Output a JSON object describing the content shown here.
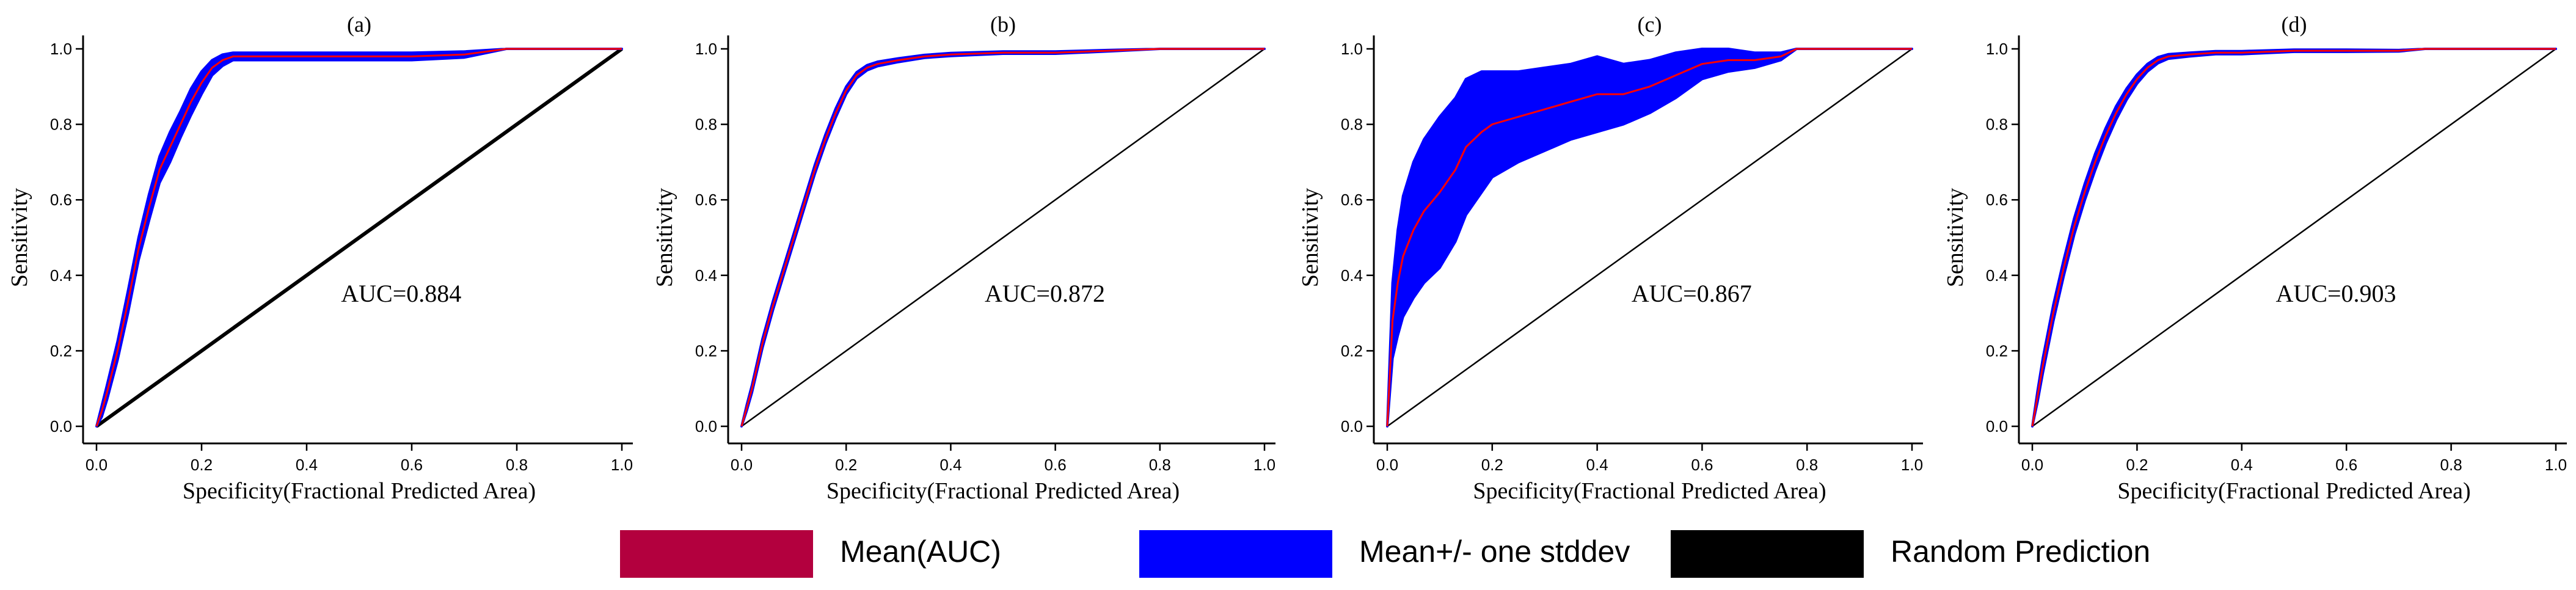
{
  "chart_data": [
    {
      "type": "line",
      "panel": "(a)",
      "title": "(a)",
      "xlabel": "Specificity(Fractional Predicted Area)",
      "ylabel": "Sensitivity",
      "xlim": [
        0,
        1
      ],
      "ylim": [
        0,
        1
      ],
      "x_ticks": [
        "0.0",
        "0.2",
        "0.4",
        "0.6",
        "0.8",
        "1.0"
      ],
      "y_ticks": [
        "0.0",
        "0.2",
        "0.4",
        "0.6",
        "0.8",
        "1.0"
      ],
      "annotation": "AUC=0.884",
      "series": [
        {
          "name": "Mean(AUC)",
          "x": [
            0,
            0.01,
            0.02,
            0.04,
            0.06,
            0.08,
            0.1,
            0.12,
            0.14,
            0.16,
            0.18,
            0.2,
            0.22,
            0.24,
            0.26,
            0.3,
            0.4,
            0.5,
            0.6,
            0.7,
            0.78,
            0.85,
            1.0
          ],
          "y": [
            0,
            0.04,
            0.09,
            0.2,
            0.33,
            0.47,
            0.58,
            0.68,
            0.74,
            0.8,
            0.86,
            0.91,
            0.95,
            0.97,
            0.98,
            0.98,
            0.98,
            0.98,
            0.98,
            0.985,
            1.0,
            1.0,
            1.0
          ],
          "std": [
            0,
            0.015,
            0.02,
            0.025,
            0.03,
            0.03,
            0.035,
            0.035,
            0.04,
            0.035,
            0.035,
            0.03,
            0.02,
            0.015,
            0.01,
            0.01,
            0.01,
            0.01,
            0.01,
            0.008,
            0,
            0,
            0
          ]
        },
        {
          "name": "Random Prediction",
          "x": [
            0,
            1
          ],
          "y": [
            0,
            1
          ]
        }
      ]
    },
    {
      "type": "line",
      "panel": "(b)",
      "title": "(b)",
      "xlabel": "Specificity(Fractional Predicted Area)",
      "ylabel": "Sensitivity",
      "xlim": [
        0,
        1
      ],
      "ylim": [
        0,
        1
      ],
      "x_ticks": [
        "0.0",
        "0.2",
        "0.4",
        "0.6",
        "0.8",
        "1.0"
      ],
      "y_ticks": [
        "0.0",
        "0.2",
        "0.4",
        "0.6",
        "0.8",
        "1.0"
      ],
      "annotation": "AUC=0.872",
      "series": [
        {
          "name": "Mean(AUC)",
          "x": [
            0,
            0.01,
            0.02,
            0.04,
            0.06,
            0.08,
            0.1,
            0.12,
            0.14,
            0.16,
            0.18,
            0.2,
            0.22,
            0.24,
            0.26,
            0.3,
            0.35,
            0.4,
            0.5,
            0.6,
            0.7,
            0.8,
            0.9,
            1.0
          ],
          "y": [
            0,
            0.05,
            0.1,
            0.22,
            0.32,
            0.41,
            0.5,
            0.59,
            0.68,
            0.76,
            0.83,
            0.89,
            0.93,
            0.95,
            0.96,
            0.97,
            0.98,
            0.985,
            0.99,
            0.99,
            0.995,
            1.0,
            1.0,
            1.0
          ],
          "std": [
            0,
            0.008,
            0.01,
            0.012,
            0.012,
            0.012,
            0.012,
            0.012,
            0.012,
            0.012,
            0.012,
            0.01,
            0.008,
            0.007,
            0.006,
            0.005,
            0.004,
            0.004,
            0.003,
            0.003,
            0.002,
            0,
            0,
            0
          ]
        },
        {
          "name": "Random Prediction",
          "x": [
            0,
            1
          ],
          "y": [
            0,
            1
          ]
        }
      ]
    },
    {
      "type": "line",
      "panel": "(c)",
      "title": "(c)",
      "xlabel": "Specificity(Fractional Predicted Area)",
      "ylabel": "Sensitivity",
      "xlim": [
        0,
        1
      ],
      "ylim": [
        0,
        1
      ],
      "x_ticks": [
        "0.0",
        "0.2",
        "0.4",
        "0.6",
        "0.8",
        "1.0"
      ],
      "y_ticks": [
        "0.0",
        "0.2",
        "0.4",
        "0.6",
        "0.8",
        "1.0"
      ],
      "annotation": "AUC=0.867",
      "series": [
        {
          "name": "Mean(AUC)",
          "x": [
            0,
            0.01,
            0.02,
            0.03,
            0.05,
            0.07,
            0.1,
            0.13,
            0.15,
            0.18,
            0.2,
            0.25,
            0.3,
            0.35,
            0.4,
            0.45,
            0.5,
            0.55,
            0.6,
            0.65,
            0.7,
            0.75,
            0.78,
            0.85,
            1.0
          ],
          "y": [
            0,
            0.28,
            0.38,
            0.45,
            0.52,
            0.57,
            0.62,
            0.68,
            0.74,
            0.78,
            0.8,
            0.82,
            0.84,
            0.86,
            0.88,
            0.88,
            0.9,
            0.93,
            0.96,
            0.97,
            0.97,
            0.98,
            1.0,
            1.0,
            1.0
          ],
          "std": [
            0,
            0.1,
            0.14,
            0.16,
            0.18,
            0.19,
            0.2,
            0.19,
            0.18,
            0.16,
            0.14,
            0.12,
            0.11,
            0.1,
            0.1,
            0.08,
            0.07,
            0.06,
            0.04,
            0.03,
            0.02,
            0.01,
            0,
            0,
            0
          ]
        },
        {
          "name": "Random Prediction",
          "x": [
            0,
            1
          ],
          "y": [
            0,
            1
          ]
        }
      ]
    },
    {
      "type": "line",
      "panel": "(d)",
      "title": "(d)",
      "xlabel": "Specificity(Fractional Predicted Area)",
      "ylabel": "Sensitivity",
      "xlim": [
        0,
        1
      ],
      "ylim": [
        0,
        1
      ],
      "x_ticks": [
        "0.0",
        "0.2",
        "0.4",
        "0.6",
        "0.8",
        "1.0"
      ],
      "y_ticks": [
        "0.0",
        "0.2",
        "0.4",
        "0.6",
        "0.8",
        "1.0"
      ],
      "annotation": "AUC=0.903",
      "series": [
        {
          "name": "Mean(AUC)",
          "x": [
            0,
            0.01,
            0.02,
            0.04,
            0.06,
            0.08,
            0.1,
            0.12,
            0.14,
            0.16,
            0.18,
            0.2,
            0.22,
            0.24,
            0.26,
            0.3,
            0.35,
            0.4,
            0.5,
            0.6,
            0.7,
            0.75,
            0.8,
            0.9,
            1.0
          ],
          "y": [
            0,
            0.08,
            0.16,
            0.3,
            0.42,
            0.53,
            0.62,
            0.7,
            0.77,
            0.83,
            0.88,
            0.92,
            0.95,
            0.97,
            0.98,
            0.985,
            0.99,
            0.99,
            0.995,
            0.995,
            0.995,
            1.0,
            1.0,
            1.0,
            1.0
          ],
          "std": [
            0,
            0.015,
            0.02,
            0.022,
            0.022,
            0.022,
            0.022,
            0.022,
            0.02,
            0.018,
            0.015,
            0.012,
            0.01,
            0.008,
            0.006,
            0.005,
            0.004,
            0.004,
            0.003,
            0.003,
            0.002,
            0,
            0,
            0,
            0
          ]
        },
        {
          "name": "Random Prediction",
          "x": [
            0,
            1
          ],
          "y": [
            0,
            1
          ]
        }
      ]
    }
  ],
  "legend": {
    "items": [
      {
        "label": "Mean(AUC)",
        "color": "#b3003e"
      },
      {
        "label": "Mean+/- one stddev",
        "color": "#0000ff"
      },
      {
        "label": "Random Prediction",
        "color": "#000000"
      }
    ]
  },
  "colors": {
    "mean_line": "#ff0000",
    "stddev_band": "#0000ff",
    "random_line": "#000000"
  }
}
